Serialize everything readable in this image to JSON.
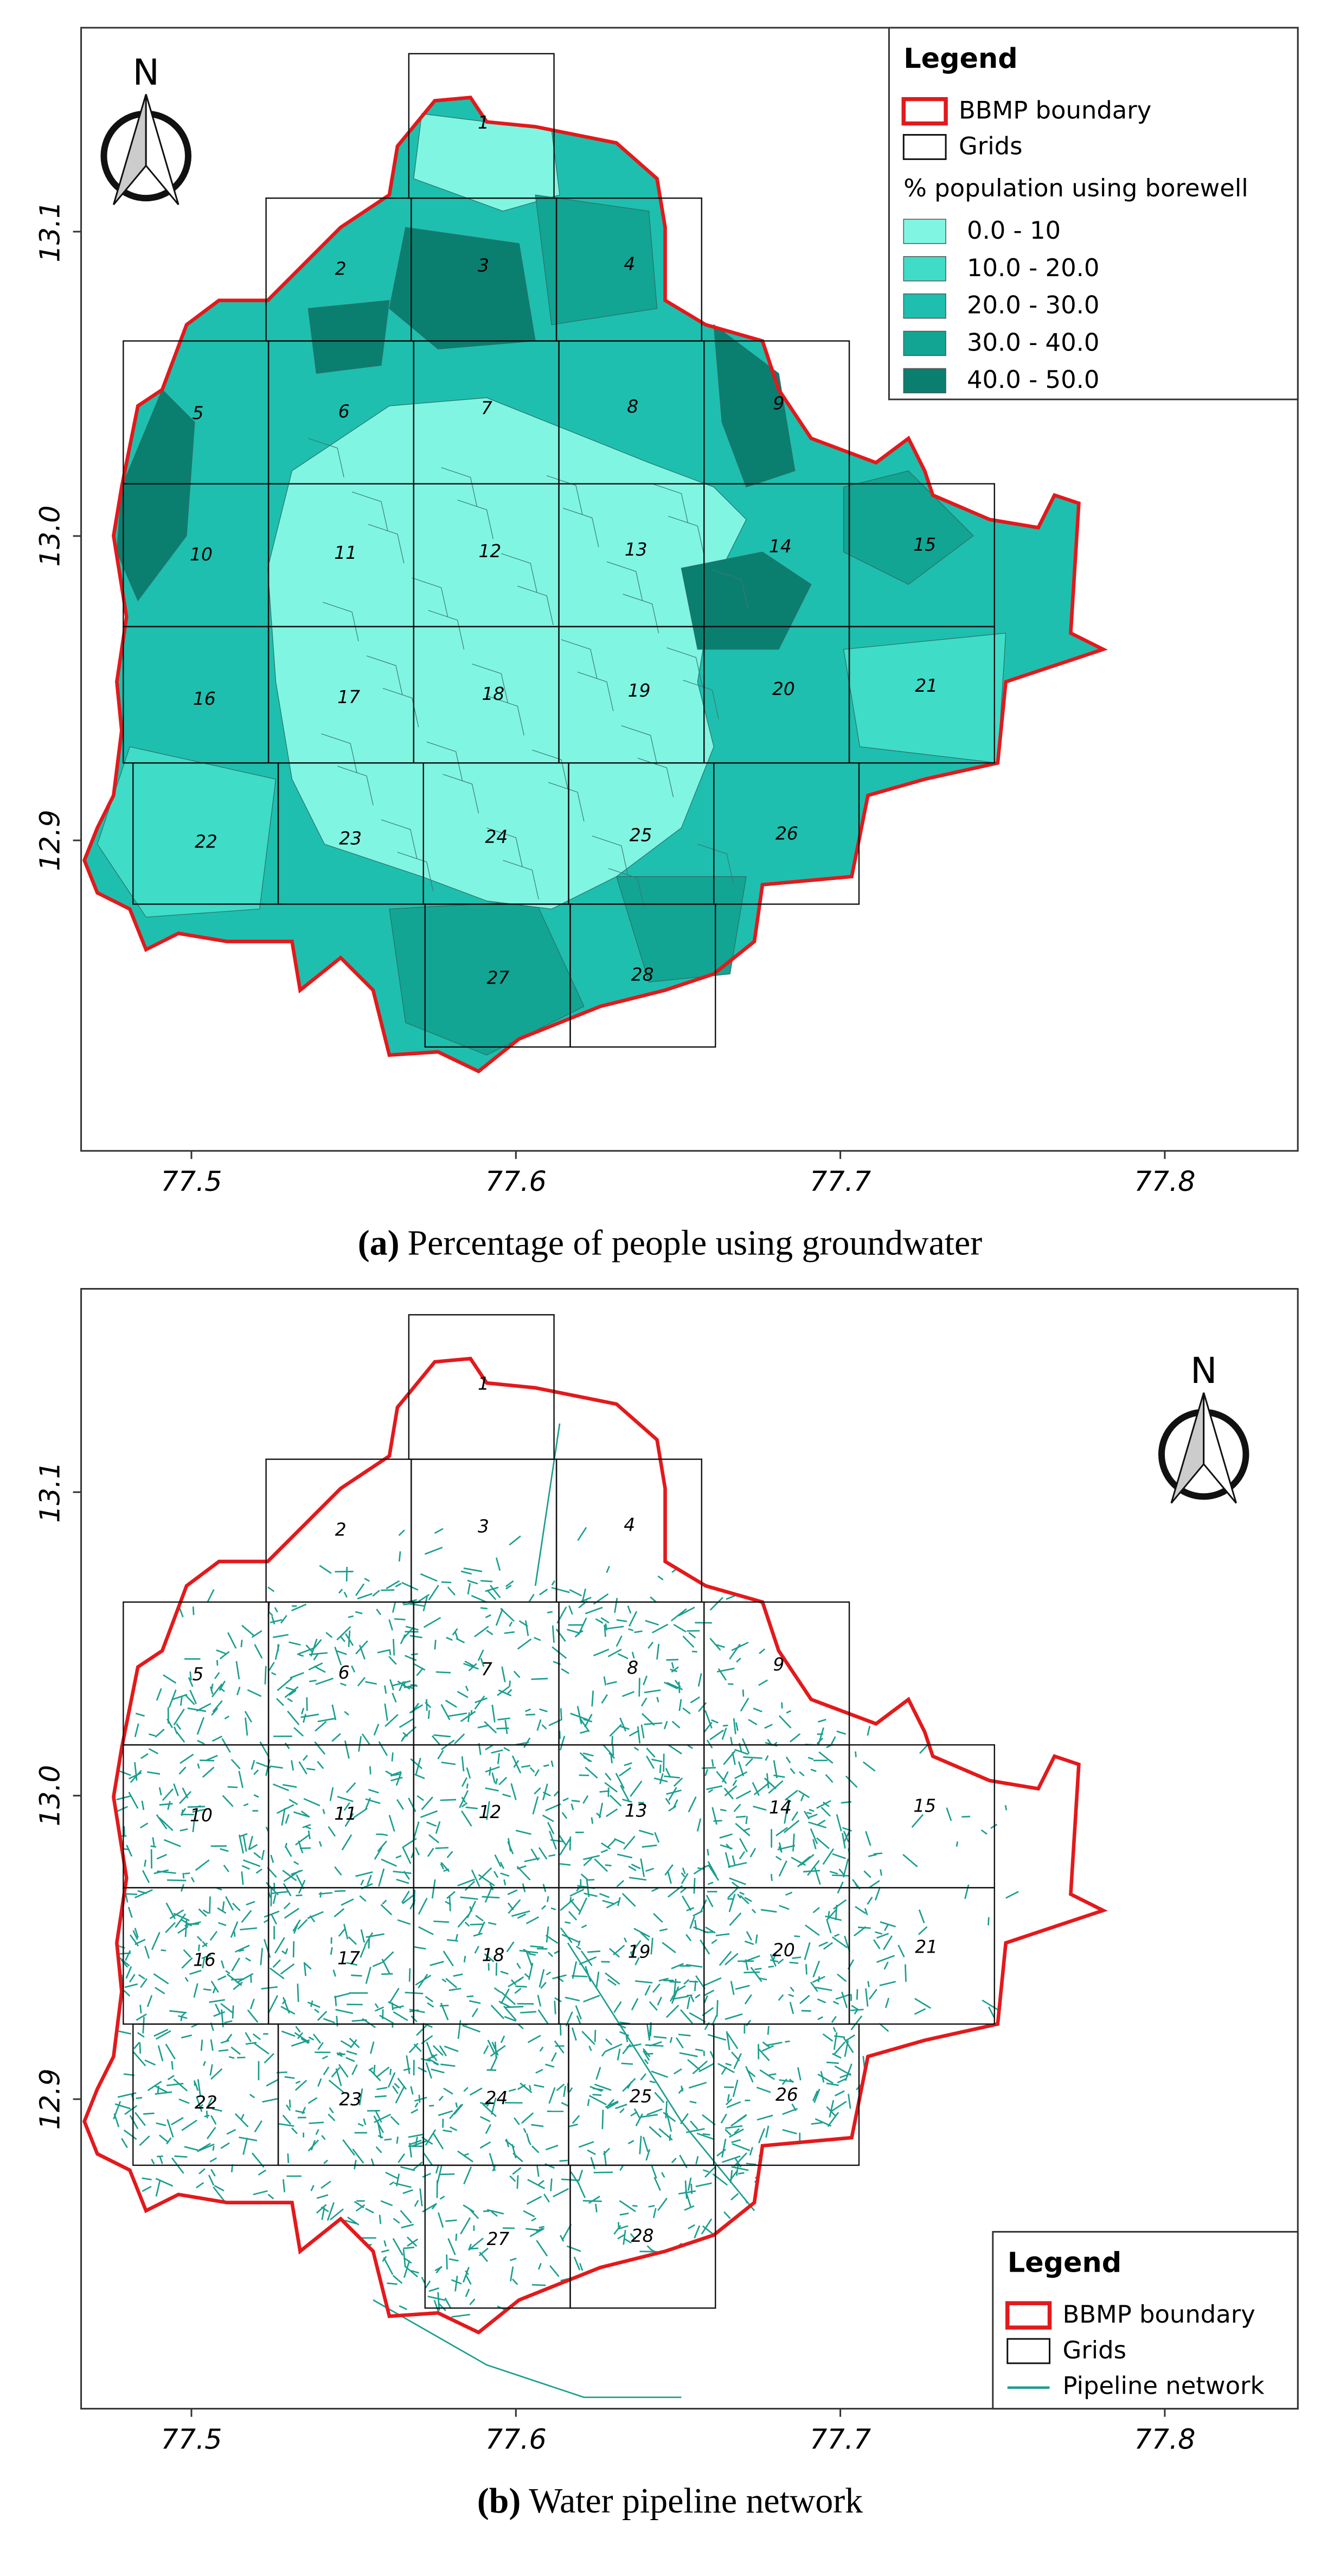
{
  "panel_a": {
    "caption": {
      "label": "(a)",
      "text": "Percentage of people using groundwater"
    },
    "north": "N",
    "legend": {
      "title": "Legend",
      "boundary": "BBMP boundary",
      "boundary_color": "#e3191c",
      "grids": "Grids",
      "class_title": "% population using borewell",
      "classes": [
        {
          "label": "0.0 - 10",
          "color": "#80f5e2"
        },
        {
          "label": "10.0 - 20.0",
          "color": "#3fdcc8"
        },
        {
          "label": "20.0 - 30.0",
          "color": "#1ebfae"
        },
        {
          "label": "30.0 - 40.0",
          "color": "#12a593"
        },
        {
          "label": "40.0 - 50.0",
          "color": "#0a7f70"
        }
      ]
    },
    "grid_labels": [
      "1",
      "2",
      "3",
      "4",
      "5",
      "6",
      "7",
      "8",
      "9",
      "10",
      "11",
      "12",
      "13",
      "14",
      "15",
      "16",
      "17",
      "18",
      "19",
      "20",
      "21",
      "22",
      "23",
      "24",
      "25",
      "26",
      "27",
      "28"
    ],
    "xlim": [
      77.466,
      77.841
    ],
    "ylim": [
      12.798,
      13.167
    ],
    "xticks": [
      77.5,
      77.6,
      77.7,
      77.8
    ],
    "yticks": [
      13.1,
      {
        "value": 13,
        "label": "13.0"
      },
      12.9
    ]
  },
  "panel_b": {
    "caption": {
      "label": "(b)",
      "text": "Water pipeline network"
    },
    "north": "N",
    "legend": {
      "title": "Legend",
      "boundary": "BBMP boundary",
      "boundary_color": "#e3191c",
      "grids": "Grids",
      "pipeline": "Pipeline network",
      "pipeline_color": "#1a9e8e"
    },
    "grid_labels": [
      "1",
      "2",
      "3",
      "4",
      "5",
      "6",
      "7",
      "8",
      "9",
      "10",
      "11",
      "12",
      "13",
      "14",
      "15",
      "16",
      "17",
      "18",
      "19",
      "20",
      "21",
      "22",
      "23",
      "24",
      "25",
      "26",
      "27",
      "28"
    ],
    "xlim": [
      77.466,
      77.841
    ],
    "ylim": [
      12.798,
      13.167
    ],
    "xticks": [
      77.5,
      77.6,
      77.7,
      77.8
    ],
    "yticks": [
      13.1,
      {
        "value": 13,
        "label": "13.0"
      },
      12.9
    ]
  }
}
